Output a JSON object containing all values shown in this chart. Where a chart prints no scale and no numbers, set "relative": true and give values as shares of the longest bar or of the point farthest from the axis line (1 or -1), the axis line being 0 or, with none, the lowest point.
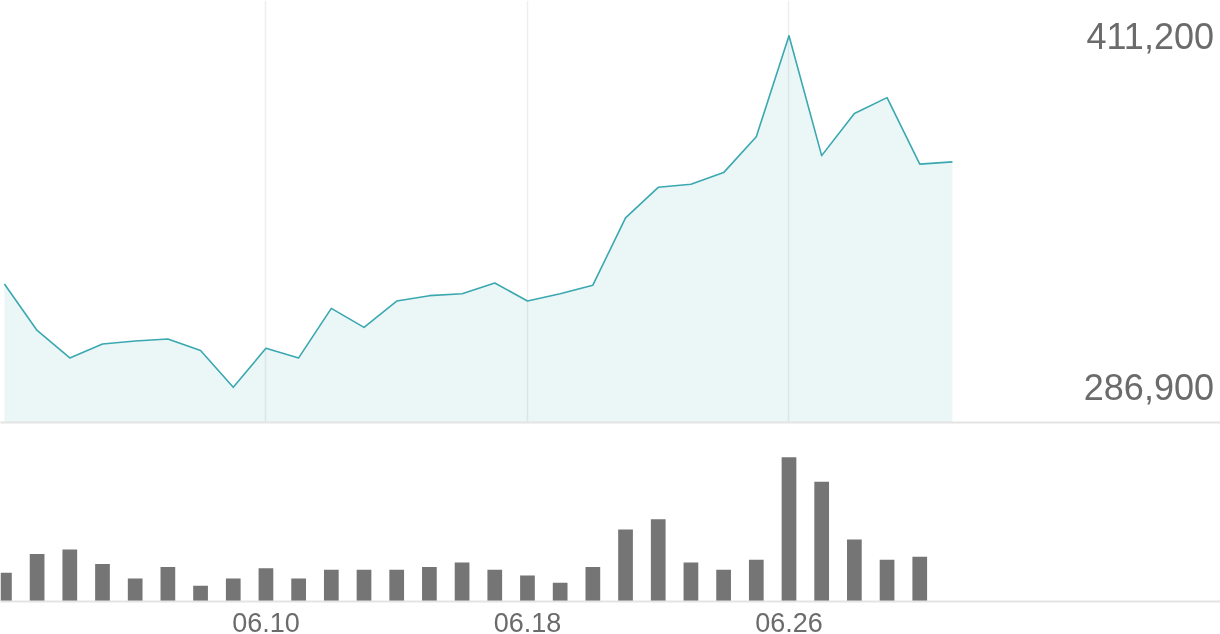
{
  "chart_data": [
    {
      "type": "area",
      "categories": [
        null,
        null,
        null,
        null,
        null,
        null,
        null,
        null,
        "06.10",
        null,
        null,
        null,
        null,
        null,
        null,
        null,
        "06.18",
        null,
        null,
        null,
        null,
        null,
        null,
        null,
        "06.26",
        null,
        null,
        null,
        null,
        null
      ],
      "series": [
        {
          "color": "#3aa8b0",
          "values": [
            323400,
            307000,
            297300,
            302200,
            303300,
            304000,
            299900,
            286900,
            300700,
            297300,
            314800,
            308100,
            317400,
            319300,
            320000,
            323800,
            317400,
            320000,
            323000,
            346800,
            357600,
            358700,
            362800,
            375500,
            411200,
            368800,
            383700,
            389300,
            365800,
            366600
          ]
        }
      ],
      "ylim": [
        274470,
        423630
      ],
      "yticks": [
        {
          "value": 286900,
          "label": "286,900"
        },
        {
          "value": 411200,
          "label": "411,200"
        }
      ],
      "grid": "x",
      "tick_labels": "y"
    },
    {
      "type": "bar",
      "relative": true,
      "categories": [
        null,
        null,
        null,
        null,
        null,
        null,
        null,
        null,
        "06.10",
        null,
        null,
        null,
        null,
        null,
        null,
        null,
        "06.18",
        null,
        null,
        null,
        null,
        null,
        null,
        null,
        "06.26",
        null,
        null,
        null,
        null,
        null
      ],
      "series": [
        {
          "color": "#757575",
          "values": [
            0.2,
            0.33,
            0.36,
            0.26,
            0.16,
            0.24,
            0.11,
            0.16,
            0.23,
            0.16,
            0.22,
            0.22,
            0.22,
            0.24,
            0.27,
            0.22,
            0.18,
            0.13,
            0.24,
            0.5,
            0.57,
            0.27,
            0.22,
            0.29,
            1,
            0.83,
            0.43,
            0.29,
            0.31,
            null
          ]
        }
      ],
      "tick_labels": "x"
    }
  ]
}
